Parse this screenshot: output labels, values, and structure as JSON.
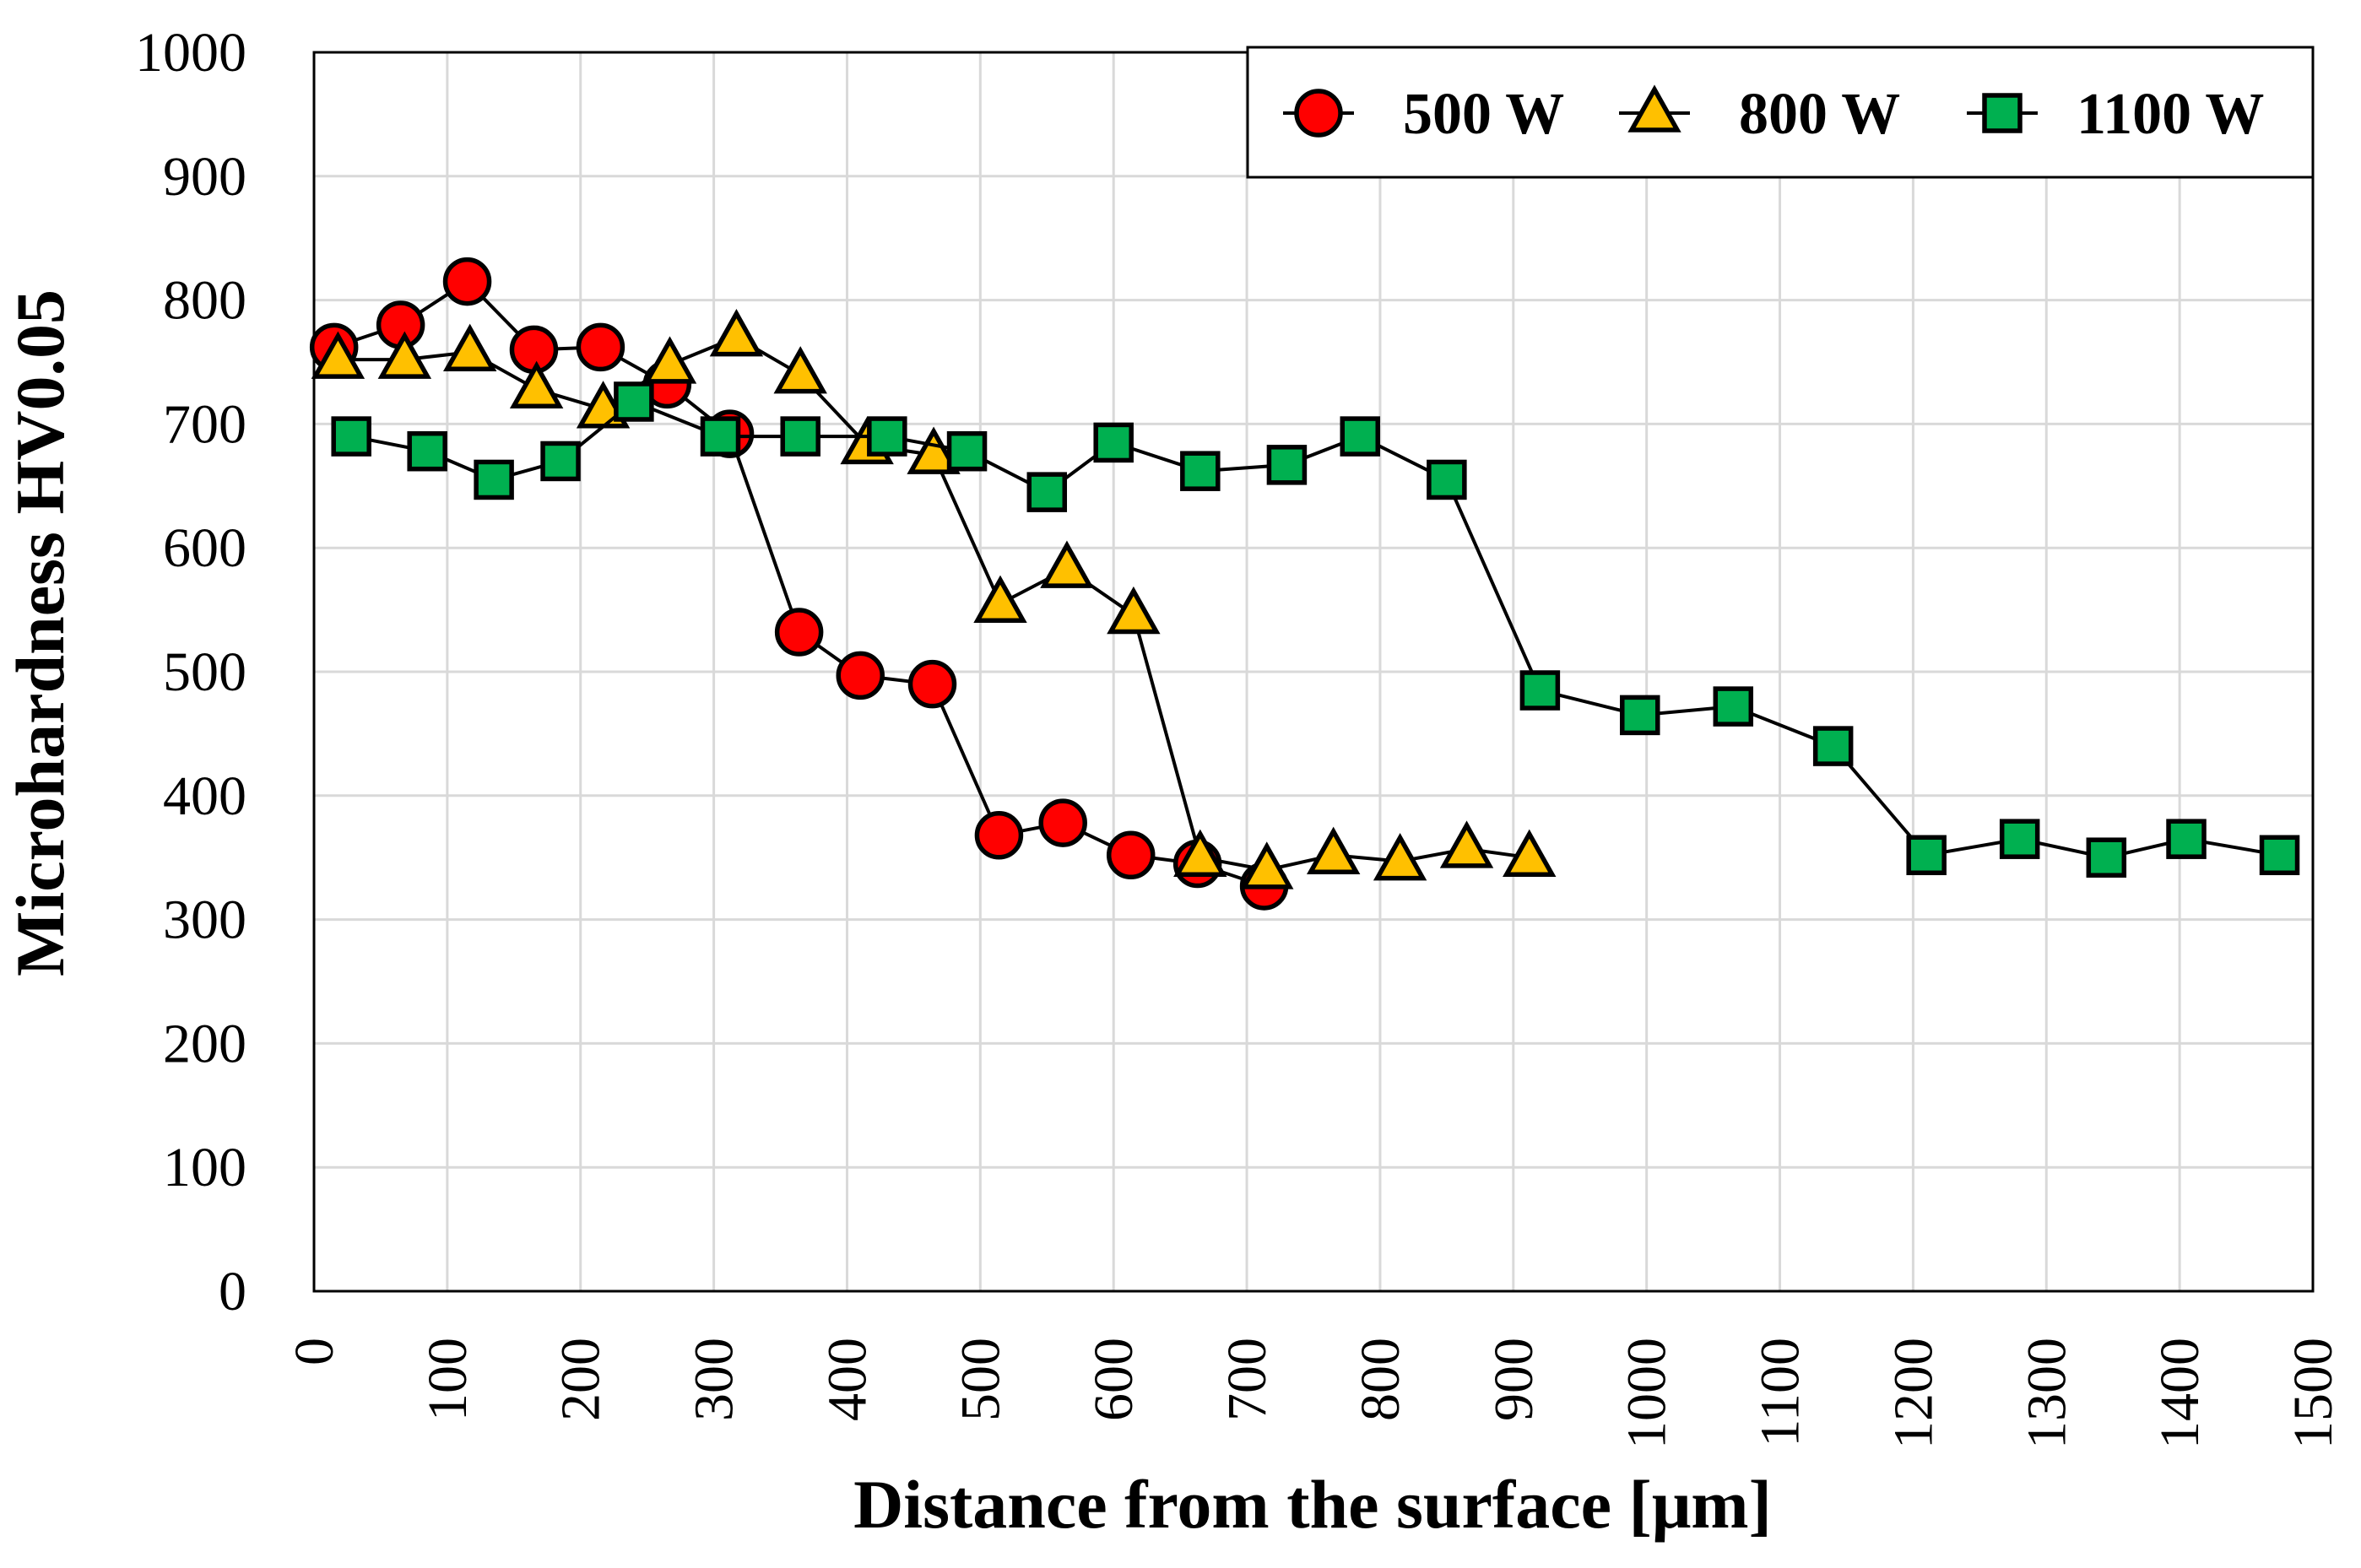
{
  "chart_data": {
    "type": "line",
    "title": "",
    "xlabel": "Distance from the surface [μm]",
    "ylabel": "Microhardness HV0.05",
    "xlim": [
      0,
      1500
    ],
    "ylim": [
      0,
      1000
    ],
    "x_ticks": [
      0,
      100,
      200,
      300,
      400,
      500,
      600,
      700,
      800,
      900,
      1000,
      1100,
      1200,
      1300,
      1400,
      1500
    ],
    "y_ticks": [
      0,
      100,
      200,
      300,
      400,
      500,
      600,
      700,
      800,
      900,
      1000
    ],
    "grid": true,
    "legend_position": "top-right",
    "series": [
      {
        "name": "500 W",
        "marker": "circle",
        "color": "#ff0000",
        "x": [
          15,
          65,
          115,
          165,
          215,
          265,
          312,
          364,
          410,
          464,
          514,
          562,
          613,
          663,
          713
        ],
        "y": [
          762,
          780,
          815,
          760,
          762,
          732,
          692,
          532,
          497,
          490,
          368,
          378,
          352,
          345,
          327
        ]
      },
      {
        "name": "800 W",
        "marker": "triangle",
        "color": "#ffc000",
        "x": [
          18,
          68,
          117,
          167,
          217,
          267,
          317,
          365,
          415,
          465,
          515,
          565,
          615,
          665,
          715,
          765,
          815,
          865,
          912
        ],
        "y": [
          752,
          752,
          758,
          728,
          712,
          748,
          770,
          740,
          683,
          675,
          555,
          583,
          546,
          350,
          340,
          352,
          347,
          357,
          350
        ]
      },
      {
        "name": "1100 W",
        "marker": "square",
        "color": "#00b050",
        "x": [
          28,
          85,
          135,
          185,
          240,
          305,
          365,
          430,
          490,
          550,
          600,
          665,
          730,
          785,
          850,
          920,
          995,
          1065,
          1140,
          1210,
          1280,
          1345,
          1405,
          1475
        ],
        "y": [
          690,
          678,
          655,
          670,
          718,
          690,
          690,
          690,
          678,
          645,
          685,
          662,
          667,
          690,
          655,
          485,
          465,
          472,
          440,
          352,
          365,
          350,
          365,
          352
        ]
      }
    ]
  }
}
